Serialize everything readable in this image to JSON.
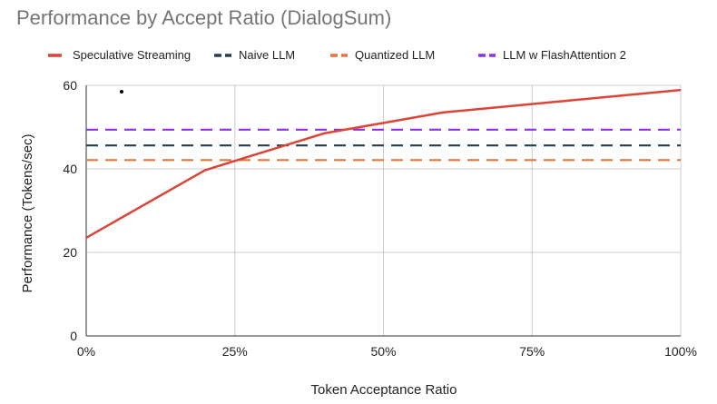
{
  "chart_data": {
    "type": "line",
    "title": "Performance by Accept Ratio (DialogSum)",
    "xlabel": "Token Acceptance Ratio",
    "ylabel": "Performance (Tokens/sec)",
    "xlim": [
      0,
      100
    ],
    "ylim": [
      0,
      60
    ],
    "x_ticks": [
      0,
      25,
      50,
      75,
      100
    ],
    "x_tick_labels": [
      "0%",
      "25%",
      "50%",
      "75%",
      "100%"
    ],
    "y_ticks": [
      0,
      20,
      40,
      60
    ],
    "y_tick_labels": [
      "0",
      "20",
      "40",
      "60"
    ],
    "grid": true,
    "legend_position": "top",
    "series": [
      {
        "name": "Speculative Streaming",
        "style": "solid",
        "color": "#db4437",
        "points": [
          [
            0,
            23.5
          ],
          [
            20,
            39.7
          ],
          [
            40,
            48.5
          ],
          [
            60,
            53.5
          ],
          [
            80,
            56.2
          ],
          [
            100,
            58.9
          ]
        ]
      },
      {
        "name": "Naive LLM",
        "style": "dashed",
        "color": "#263e52",
        "points": [
          [
            0,
            45.6
          ],
          [
            100,
            45.6
          ]
        ]
      },
      {
        "name": "Quantized LLM",
        "style": "dashed",
        "color": "#e8753d",
        "points": [
          [
            0,
            42.1
          ],
          [
            100,
            42.1
          ]
        ]
      },
      {
        "name": "LLM w FlashAttention 2",
        "style": "dashed",
        "color": "#8c2fef",
        "points": [
          [
            0,
            49.4
          ],
          [
            100,
            49.4
          ]
        ]
      }
    ]
  }
}
